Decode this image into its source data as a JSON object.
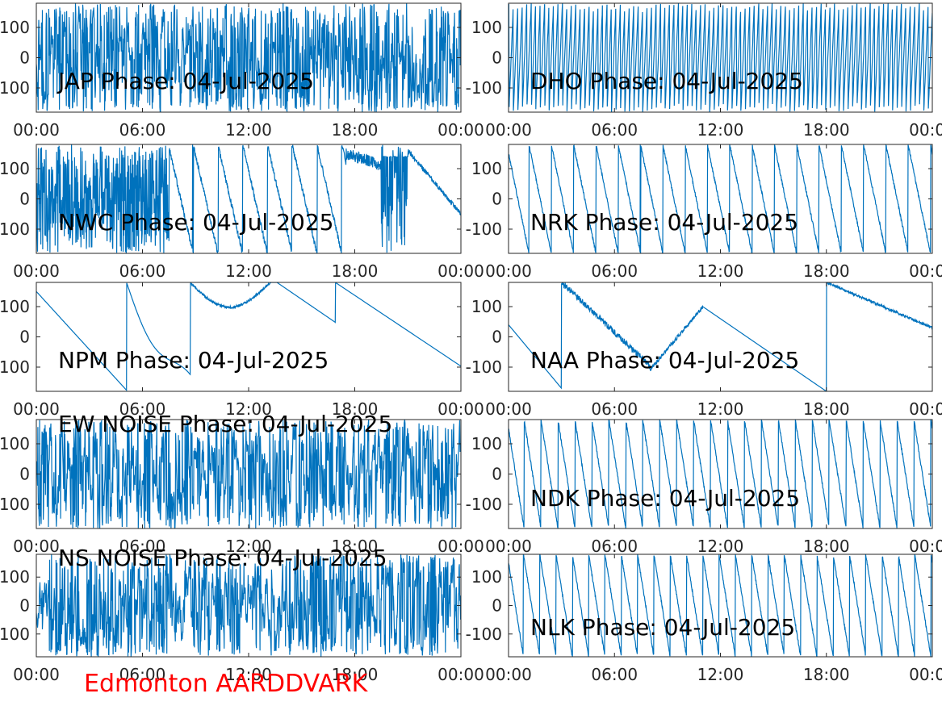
{
  "figure": {
    "footer_title": "Edmonton AARDDVARK",
    "footer_color": "#ff0000",
    "line_color": "#0072bd",
    "axis_color": "#262626"
  },
  "chart_data": [
    {
      "type": "line",
      "title": "JAP Phase: 04-Jul-2025",
      "series": [
        {
          "pattern": "noise",
          "density": 0.9
        }
      ],
      "x_ticks": [
        "00:00",
        "06:00",
        "12:00",
        "18:00",
        "00:00"
      ],
      "y_ticks": [
        "100",
        "0",
        "-100"
      ],
      "ylim": [
        -180,
        180
      ],
      "xlim": [
        "00:00",
        "24:00"
      ]
    },
    {
      "type": "line",
      "title": "DHO Phase: 04-Jul-2025",
      "series": [
        {
          "pattern": "wrap",
          "slope": 1,
          "count": 95
        }
      ],
      "x_ticks": [
        "00:00",
        "06:00",
        "12:00",
        "18:00",
        "00:00"
      ],
      "y_ticks": [
        "100",
        "0",
        "-100"
      ],
      "ylim": [
        -180,
        180
      ],
      "xlim": [
        "00:00",
        "24:00"
      ]
    },
    {
      "type": "line",
      "title": "NWC Phase: 04-Jul-2025",
      "series": [
        {
          "pattern": "mixed"
        }
      ],
      "x_ticks": [
        "00:00",
        "06:00",
        "12:00",
        "18:00",
        "00:00"
      ],
      "y_ticks": [
        "100",
        "0",
        "-100"
      ],
      "ylim": [
        -180,
        180
      ],
      "xlim": [
        "00:00",
        "24:00"
      ]
    },
    {
      "type": "line",
      "title": "NRK Phase: 04-Jul-2025",
      "series": [
        {
          "pattern": "wrap",
          "slope": -1,
          "count": 19
        }
      ],
      "x_ticks": [
        "00:00",
        "06:00",
        "12:00",
        "18:00",
        "00:00"
      ],
      "y_ticks": [
        "100",
        "0",
        "-100"
      ],
      "ylim": [
        -180,
        180
      ],
      "xlim": [
        "00:00",
        "24:00"
      ]
    },
    {
      "type": "line",
      "title": "NPM Phase: 04-Jul-2025",
      "series": [
        {
          "pattern": "npm"
        }
      ],
      "x_ticks": [
        "00:00",
        "06:00",
        "12:00",
        "18:00",
        "00:00"
      ],
      "y_ticks": [
        "100",
        "0",
        "-100"
      ],
      "ylim": [
        -180,
        180
      ],
      "xlim": [
        "00:00",
        "24:00"
      ]
    },
    {
      "type": "line",
      "title": "NAA Phase: 04-Jul-2025",
      "series": [
        {
          "pattern": "naa"
        }
      ],
      "x_ticks": [
        "00:00",
        "06:00",
        "12:00",
        "18:00",
        "00:00"
      ],
      "y_ticks": [
        "100",
        "0",
        "-100"
      ],
      "ylim": [
        -180,
        180
      ],
      "xlim": [
        "00:00",
        "24:00"
      ]
    },
    {
      "type": "line",
      "title": "EW NOISE Phase: 04-Jul-2025",
      "series": [
        {
          "pattern": "noise",
          "density": 0.8
        }
      ],
      "x_ticks": [
        "00:00",
        "06:00",
        "12:00",
        "18:00",
        "00:00"
      ],
      "y_ticks": [
        "100",
        "0",
        "-100"
      ],
      "ylim": [
        -180,
        180
      ],
      "xlim": [
        "00:00",
        "24:00"
      ]
    },
    {
      "type": "line",
      "title": "NDK Phase: 04-Jul-2025",
      "series": [
        {
          "pattern": "wrap",
          "slope": -1,
          "count": 25
        }
      ],
      "x_ticks": [
        "00:00",
        "06:00",
        "12:00",
        "18:00",
        "00:00"
      ],
      "y_ticks": [
        "100",
        "0",
        "-100"
      ],
      "ylim": [
        -180,
        180
      ],
      "xlim": [
        "00:00",
        "24:00"
      ]
    },
    {
      "type": "line",
      "title": "NS NOISE Phase: 04-Jul-2025",
      "series": [
        {
          "pattern": "noise",
          "density": 0.7
        }
      ],
      "x_ticks": [
        "00:00",
        "06:00",
        "12:00",
        "18:00",
        "00:00"
      ],
      "y_ticks": [
        "100",
        "0",
        "-100"
      ],
      "ylim": [
        -180,
        180
      ],
      "xlim": [
        "00:00",
        "24:00"
      ]
    },
    {
      "type": "line",
      "title": "NLK Phase: 04-Jul-2025",
      "series": [
        {
          "pattern": "wrap",
          "slope": -1,
          "count": 26
        }
      ],
      "x_ticks": [
        "00:00",
        "06:00",
        "12:00",
        "18:00",
        "00:00"
      ],
      "y_ticks": [
        "100",
        "0",
        "-100"
      ],
      "ylim": [
        -180,
        180
      ],
      "xlim": [
        "00:00",
        "24:00"
      ]
    }
  ]
}
